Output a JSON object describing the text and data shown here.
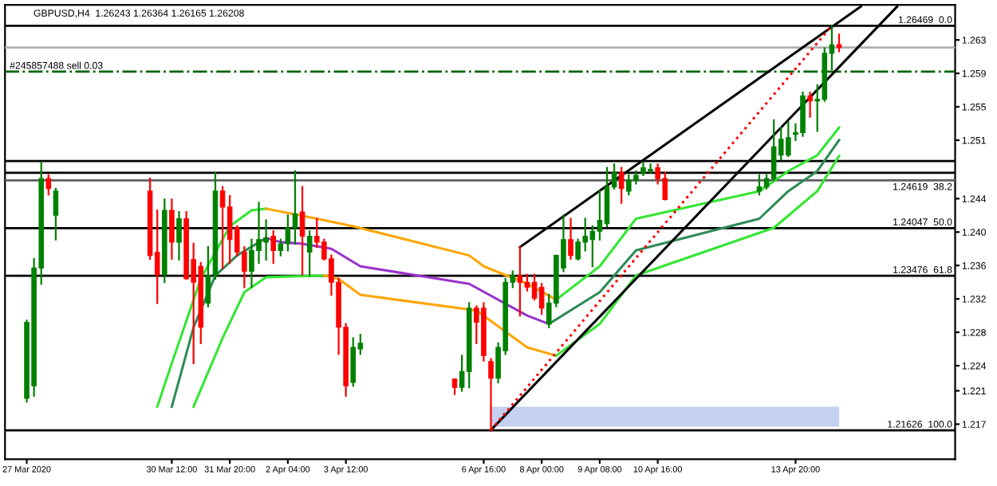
{
  "chart_data": {
    "type": "candlestick",
    "title": "GBPUSD,H4  1.26243 1.26364 1.26165 1.26208",
    "x": [
      "2020-03-27T04:00",
      "2020-03-27T08:00",
      "2020-03-27T12:00",
      "2020-03-27T16:00",
      "2020-03-27T20:00",
      "2020-03-30T00:00",
      "2020-03-30T04:00",
      "2020-03-30T08:00",
      "2020-03-30T12:00",
      "2020-03-30T16:00",
      "2020-03-30T20:00",
      "2020-03-31T00:00",
      "2020-03-31T04:00",
      "2020-03-31T08:00",
      "2020-03-31T12:00",
      "2020-03-31T16:00",
      "2020-03-31T20:00",
      "2020-04-01T00:00",
      "2020-04-01T04:00",
      "2020-04-01T08:00",
      "2020-04-01T12:00",
      "2020-04-01T16:00",
      "2020-04-01T20:00",
      "2020-04-02T00:00",
      "2020-04-02T04:00",
      "2020-04-02T08:00",
      "2020-04-02T12:00",
      "2020-04-02T16:00",
      "2020-04-02T20:00",
      "2020-04-03T00:00",
      "2020-04-03T04:00",
      "2020-04-03T08:00",
      "2020-04-03T12:00",
      "2020-04-03T16:00",
      "2020-04-03T20:00",
      "2020-04-06T00:00",
      "2020-04-06T04:00",
      "2020-04-06T08:00",
      "2020-04-06T12:00",
      "2020-04-06T16:00",
      "2020-04-06T20:00",
      "2020-04-07T00:00",
      "2020-04-07T04:00",
      "2020-04-07T08:00",
      "2020-04-07T12:00",
      "2020-04-07T16:00",
      "2020-04-07T20:00",
      "2020-04-08T00:00",
      "2020-04-08T04:00",
      "2020-04-08T08:00",
      "2020-04-08T12:00",
      "2020-04-08T16:00",
      "2020-04-08T20:00",
      "2020-04-09T00:00",
      "2020-04-09T04:00",
      "2020-04-09T08:00",
      "2020-04-09T12:00",
      "2020-04-09T16:00",
      "2020-04-09T20:00",
      "2020-04-10T00:00",
      "2020-04-10T04:00",
      "2020-04-10T08:00",
      "2020-04-10T12:00",
      "2020-04-10T16:00",
      "2020-04-10T20:00",
      "2020-04-13T00:00",
      "2020-04-13T04:00",
      "2020-04-13T08:00",
      "2020-04-13T12:00",
      "2020-04-13T16:00",
      "2020-04-13T20:00",
      "2020-04-14T00:00",
      "2020-04-14T04:00",
      "2020-04-14T08:00",
      "2020-04-14T12:00",
      "2020-04-14T16:00",
      "2020-04-14T20:00"
    ],
    "ohlc": [
      [
        1.2201,
        1.2294,
        1.2197,
        1.2292
      ],
      [
        1.2216,
        1.2368,
        1.2204,
        1.2357
      ],
      [
        1.2357,
        1.2483,
        1.2338,
        1.2464
      ],
      [
        1.2464,
        1.2468,
        1.2445,
        1.2452
      ],
      [
        1.242,
        1.2452,
        1.2391,
        1.2449
      ],
      [
        1.2449,
        1.2464,
        1.2368,
        1.2372
      ],
      [
        1.2376,
        1.2426,
        1.2315,
        1.2349
      ],
      [
        1.2349,
        1.2439,
        1.234,
        1.2426
      ],
      [
        1.2426,
        1.2439,
        1.2368,
        1.2388
      ],
      [
        1.2388,
        1.2424,
        1.2367,
        1.2416
      ],
      [
        1.2416,
        1.2424,
        1.2344,
        1.2344
      ],
      [
        1.2367,
        1.2386,
        1.2243,
        1.234
      ],
      [
        1.2359,
        1.2363,
        1.2267,
        1.2286
      ],
      [
        1.2315,
        1.2382,
        1.2311,
        1.2348
      ],
      [
        1.2348,
        1.2471,
        1.2344,
        1.2449
      ],
      [
        1.2449,
        1.2454,
        1.2357,
        1.243
      ],
      [
        1.243,
        1.2443,
        1.2363,
        1.2391
      ],
      [
        1.2405,
        1.2407,
        1.2372,
        1.2376
      ],
      [
        1.2376,
        1.2382,
        1.2334,
        1.2353
      ],
      [
        1.2353,
        1.2391,
        1.2334,
        1.2378
      ],
      [
        1.2378,
        1.2435,
        1.2363,
        1.2391
      ],
      [
        1.2388,
        1.2414,
        1.2367,
        1.2393
      ],
      [
        1.2395,
        1.2401,
        1.2363,
        1.2378
      ],
      [
        1.2378,
        1.2391,
        1.2372,
        1.2386
      ],
      [
        1.2386,
        1.242,
        1.2378,
        1.2405
      ],
      [
        1.2405,
        1.2473,
        1.2386,
        1.2422
      ],
      [
        1.2424,
        1.2454,
        1.2349,
        1.2395
      ],
      [
        1.2376,
        1.2401,
        1.2348,
        1.2395
      ],
      [
        1.2395,
        1.2416,
        1.2382,
        1.2388
      ],
      [
        1.2388,
        1.2391,
        1.2367,
        1.2368
      ],
      [
        1.2368,
        1.2372,
        1.2325,
        1.234
      ],
      [
        1.234,
        1.2344,
        1.2254,
        1.2286
      ],
      [
        1.2286,
        1.229,
        1.2204,
        1.2216
      ],
      [
        1.222,
        1.2273,
        1.2216,
        1.2262
      ],
      [
        1.226,
        1.2277,
        1.2254,
        1.2267
      ],
      [
        1.2224,
        1.2224,
        1.2206,
        1.2214
      ],
      [
        1.2214,
        1.2252,
        1.221,
        1.2233
      ],
      [
        1.2233,
        1.2315,
        1.2214,
        1.2309
      ],
      [
        1.2309,
        1.2311,
        1.2267,
        1.2292
      ],
      [
        1.2309,
        1.2315,
        1.2246,
        1.2252
      ],
      [
        1.2245,
        1.2248,
        1.21626,
        1.2225
      ],
      [
        1.2225,
        1.2267,
        1.222,
        1.2262
      ],
      [
        1.2258,
        1.2344,
        1.2254,
        1.234
      ],
      [
        1.234,
        1.2353,
        1.2334,
        1.2348
      ],
      [
        1.2348,
        1.2382,
        1.23,
        1.234
      ],
      [
        1.234,
        1.2349,
        1.233,
        1.2334
      ],
      [
        1.234,
        1.2349,
        1.2319,
        1.2321
      ],
      [
        1.2334,
        1.2338,
        1.2302,
        1.2309
      ],
      [
        1.229,
        1.2325,
        1.2286,
        1.2315
      ],
      [
        1.2315,
        1.2372,
        1.2311,
        1.2372
      ],
      [
        1.2357,
        1.242,
        1.2353,
        1.2391
      ],
      [
        1.2391,
        1.2416,
        1.2368,
        1.2372
      ],
      [
        1.2368,
        1.2391,
        1.2367,
        1.2388
      ],
      [
        1.2388,
        1.2416,
        1.2378,
        1.2395
      ],
      [
        1.2391,
        1.2407,
        1.2359,
        1.2401
      ],
      [
        1.2401,
        1.2449,
        1.2391,
        1.2414
      ],
      [
        1.241,
        1.2477,
        1.2407,
        1.2454
      ],
      [
        1.2454,
        1.2481,
        1.2452,
        1.2471
      ],
      [
        1.2471,
        1.2477,
        1.2435,
        1.2452
      ],
      [
        1.2449,
        1.2468,
        1.2445,
        1.2462
      ],
      [
        1.2462,
        1.2473,
        1.2458,
        1.2468
      ],
      [
        1.2471,
        1.2483,
        1.2468,
        1.2477
      ],
      [
        1.2473,
        1.2481,
        1.2471,
        1.2475
      ],
      [
        1.2477,
        1.2481,
        1.2458,
        1.2464
      ],
      [
        1.2464,
        1.2471,
        1.2439,
        1.2439
      ],
      [
        1.2449,
        1.2468,
        1.2445,
        1.2454
      ],
      [
        1.2454,
        1.2468,
        1.2452,
        1.2464
      ],
      [
        1.2464,
        1.2534,
        1.2462,
        1.2502
      ],
      [
        1.2492,
        1.2525,
        1.2487,
        1.2511
      ],
      [
        1.2492,
        1.2531,
        1.2491,
        1.2513
      ],
      [
        1.2517,
        1.2529,
        1.251,
        1.2519
      ],
      [
        1.2519,
        1.2567,
        1.2515,
        1.2563
      ],
      [
        1.2563,
        1.2567,
        1.2538,
        1.2557
      ],
      [
        1.2557,
        1.2576,
        1.2521,
        1.2559
      ],
      [
        1.2559,
        1.262,
        1.2557,
        1.2614
      ],
      [
        1.2614,
        1.26469,
        1.2595,
        1.2624
      ],
      [
        1.26243,
        1.26364,
        1.26165,
        1.26208
      ]
    ],
    "colors": [
      "#008000",
      "#008000",
      "#008000",
      "#ff0000",
      "#008000",
      "#ff0000",
      "#ff0000",
      "#008000",
      "#ff0000",
      "#008000",
      "#ff0000",
      "#ff0000",
      "#ff0000",
      "#008000",
      "#008000",
      "#ff0000",
      "#ff0000",
      "#ff0000",
      "#ff0000",
      "#008000",
      "#008000",
      "#008000",
      "#ff0000",
      "#008000",
      "#008000",
      "#008000",
      "#ff0000",
      "#008000",
      "#ff0000",
      "#ff0000",
      "#ff0000",
      "#ff0000",
      "#ff0000",
      "#008000",
      "#008000",
      "#ff0000",
      "#008000",
      "#008000",
      "#ff0000",
      "#ff0000",
      "#ff0000",
      "#008000",
      "#008000",
      "#008000",
      "#ff0000",
      "#ff0000",
      "#ff0000",
      "#ff0000",
      "#008000",
      "#008000",
      "#008000",
      "#ff0000",
      "#008000",
      "#008000",
      "#008000",
      "#008000",
      "#008000",
      "#008000",
      "#ff0000",
      "#008000",
      "#008000",
      "#008000",
      "#008000",
      "#ff0000",
      "#ff0000",
      "#008000",
      "#008000",
      "#008000",
      "#008000",
      "#008000",
      "#008000",
      "#008000",
      "#ff0000",
      "#008000",
      "#008000",
      "#008000",
      "#ff0000"
    ],
    "series": [
      {
        "type": "line",
        "color": "#33e633",
        "x": [
          "2020-03-30T04:00",
          "2020-03-30T12:00",
          "2020-03-31T04:00",
          "2020-03-31T20:00",
          "2020-04-01T08:00",
          "2020-04-01T16:00"
        ],
        "values": [
          1.2191,
          1.2243,
          1.2344,
          1.2407,
          1.2426,
          1.2428
        ]
      },
      {
        "type": "line",
        "color": "#ffa500",
        "x": [
          "2020-04-01T16:00",
          "2020-04-02T20:00",
          "2020-04-03T16:00",
          "2020-04-06T08:00",
          "2020-04-06T16:00",
          "2020-04-07T16:00",
          "2020-04-08T08:00"
        ],
        "values": [
          1.2428,
          1.2416,
          1.2407,
          1.2372,
          1.2359,
          1.2338,
          1.2319
        ]
      },
      {
        "type": "line",
        "color": "#33e633",
        "x": [
          "2020-04-08T08:00",
          "2020-04-09T08:00",
          "2020-04-10T04:00",
          "2020-04-13T00:00",
          "2020-04-13T16:00",
          "2020-04-14T08:00",
          "2020-04-14T20:00"
        ],
        "values": [
          1.2319,
          1.2359,
          1.2416,
          1.2449,
          1.2473,
          1.2492,
          1.2525
        ]
      },
      {
        "type": "line",
        "color": "#2e8b57",
        "x": [
          "2020-03-30T12:00",
          "2020-03-31T00:00",
          "2020-03-31T12:00",
          "2020-04-01T00:00",
          "2020-04-01T16:00"
        ],
        "values": [
          1.2191,
          1.2286,
          1.2348,
          1.2372,
          1.2393
        ]
      },
      {
        "type": "line",
        "color": "#9932cc",
        "x": [
          "2020-04-01T16:00",
          "2020-04-02T00:00",
          "2020-04-02T12:00",
          "2020-04-03T04:00",
          "2020-04-03T20:00",
          "2020-04-06T08:00",
          "2020-04-07T16:00",
          "2020-04-08T04:00"
        ],
        "values": [
          1.2393,
          1.2388,
          1.2386,
          1.238,
          1.2359,
          1.2338,
          1.23,
          1.229
        ]
      },
      {
        "type": "line",
        "color": "#2e8b57",
        "x": [
          "2020-04-08T04:00",
          "2020-04-09T08:00",
          "2020-04-10T04:00",
          "2020-04-13T00:00",
          "2020-04-13T16:00",
          "2020-04-14T08:00",
          "2020-04-14T20:00"
        ],
        "values": [
          1.229,
          1.2328,
          1.2378,
          1.2416,
          1.2449,
          1.2473,
          1.251
        ]
      },
      {
        "type": "line",
        "color": "#33e633",
        "x": [
          "2020-03-31T00:00",
          "2020-03-31T16:00",
          "2020-04-01T04:00",
          "2020-04-01T16:00",
          "2020-04-03T00:00"
        ],
        "values": [
          1.2191,
          1.2273,
          1.2328,
          1.2346,
          1.2348
        ]
      },
      {
        "type": "line",
        "color": "#ffa500",
        "x": [
          "2020-04-03T00:00",
          "2020-04-03T08:00",
          "2020-04-03T20:00",
          "2020-04-06T12:00",
          "2020-04-07T16:00",
          "2020-04-08T08:00"
        ],
        "values": [
          1.2348,
          1.2344,
          1.2325,
          1.2306,
          1.2262,
          1.2252
        ]
      },
      {
        "type": "line",
        "color": "#33e633",
        "x": [
          "2020-04-08T08:00",
          "2020-04-09T08:00",
          "2020-04-10T04:00",
          "2020-04-13T08:00",
          "2020-04-14T08:00",
          "2020-04-14T20:00"
        ],
        "values": [
          1.2252,
          1.229,
          1.2348,
          1.2405,
          1.2449,
          1.2491
        ]
      },
      {
        "type": "line",
        "color": "#000000",
        "x": [
          "2020-04-07T12:00",
          "2020-04-15T08:00"
        ],
        "values": [
          1.2382,
          1.267
        ]
      },
      {
        "type": "line",
        "color": "#000000",
        "x": [
          "2020-04-06T20:00",
          "2020-04-16T04:00"
        ],
        "values": [
          1.2163,
          1.267
        ]
      },
      {
        "type": "line",
        "color": "#ff0000",
        "line_style": "dotted",
        "x": [
          "2020-04-06T20:00",
          "2020-04-14T16:00"
        ],
        "values": [
          1.2163,
          1.2647
        ]
      },
      {
        "type": "line",
        "color": "#c5cff0",
        "x": [
          "2020-04-06T20:00",
          "2020-04-14T20:00"
        ],
        "values": [
          null,
          null
        ],
        "lower": [
          1.2167,
          1.2167
        ],
        "upper": [
          1.2191,
          1.2191
        ]
      }
    ],
    "ref_lines": [
      {
        "axis": "y",
        "value": 1.26469,
        "label": "1.26469  0.0",
        "color": "#000000"
      },
      {
        "axis": "y",
        "value": 1.24619,
        "label": "1.24619  38.2",
        "color": "#606060"
      },
      {
        "axis": "y",
        "value": 1.24047,
        "label": "1.24047  50.0",
        "color": "#000000"
      },
      {
        "axis": "y",
        "value": 1.23476,
        "label": "1.23476  61.8",
        "color": "#000000"
      },
      {
        "axis": "y",
        "value": 1.21626,
        "label": "1.21626  100.0",
        "color": "#000000"
      },
      {
        "axis": "y",
        "value": 1.2592,
        "label": "#245857488 sell 0.03",
        "color": "#006400",
        "line_style": "dashed"
      },
      {
        "axis": "y",
        "value": 1.2621,
        "color": "#b0b0b0"
      },
      {
        "axis": "y",
        "value": 1.2485,
        "color": "#000000"
      },
      {
        "axis": "y",
        "value": 1.2471,
        "color": "#000000"
      }
    ],
    "xlim": [
      "2020-03-26T16:00",
      "2020-04-17T12:00"
    ],
    "ylim": [
      1.2128,
      1.2672
    ],
    "xticks": [
      {
        "value": "2020-03-27T04:00",
        "label": "27 Mar 2020"
      },
      {
        "value": "2020-03-30T12:00",
        "label": "30 Mar 12:00"
      },
      {
        "value": "2020-03-31T20:00",
        "label": "31 Mar 20:00"
      },
      {
        "value": "2020-04-02T04:00",
        "label": "2 Apr 04:00"
      },
      {
        "value": "2020-04-03T12:00",
        "label": "3 Apr 12:00"
      },
      {
        "value": "2020-04-06T16:00",
        "label": "6 Apr 16:00"
      },
      {
        "value": "2020-04-08T00:00",
        "label": "8 Apr 00:00"
      },
      {
        "value": "2020-04-09T08:00",
        "label": "9 Apr 08:00"
      },
      {
        "value": "2020-04-10T16:00",
        "label": "10 Apr 16:00"
      },
      {
        "value": "2020-04-13T20:00",
        "label": "13 Apr 20:00"
      }
    ],
    "yticks": [
      {
        "value": 1.263,
        "label": "1.263"
      },
      1.259,
      1.255,
      1.251,
      1.244,
      {
        "value": 1.24,
        "label": "1.240"
      },
      1.236,
      1.232,
      1.228,
      1.224,
      1.221,
      1.217
    ],
    "grid": false,
    "legend": false
  }
}
